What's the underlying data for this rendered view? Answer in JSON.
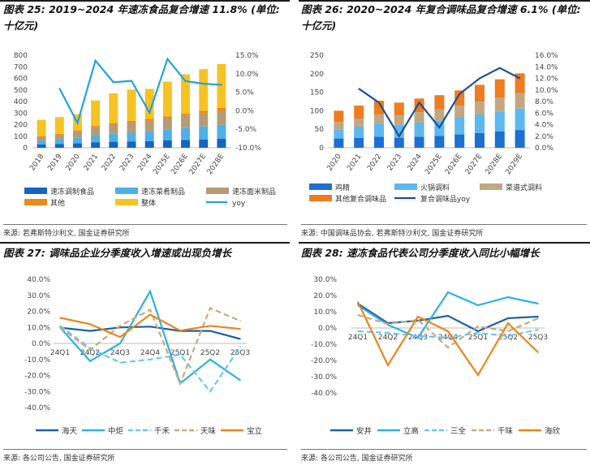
{
  "panels": [
    {
      "title": "图表 25: 2019~2024 年速冻食品复合增速 11.8% (单位: 十亿元)",
      "source": "来源: 若弗斯特沙利文, 国金证券研究所"
    },
    {
      "title": "图表 26: 2020~2024 年复合调味品复合增速 6.1% (单位: 十亿元)",
      "source": "来源: 中国调味品协会, 若弗斯特沙利文, 国金证券研究所"
    },
    {
      "title": "图表 27: 调味品企业分季度收入增速或出现负增长",
      "source": "来源: 各公司公告, 国金证券研究所"
    },
    {
      "title": "图表 28: 速冻食品代表公司分季度收入同比小幅增长",
      "source": "来源: 各公司公告, 国金证券研究所"
    }
  ],
  "chart_data": [
    {
      "type": "bar",
      "stacked": true,
      "categories": [
        "2018",
        "2019",
        "2020",
        "2021",
        "2022",
        "2023",
        "2024",
        "2025E",
        "2026E",
        "2027E",
        "2028E"
      ],
      "series": [
        {
          "name": "速冻调制食品",
          "color": "#1565c0",
          "axis": "left",
          "values": [
            28,
            32,
            38,
            48,
            52,
            55,
            58,
            63,
            68,
            72,
            77
          ]
        },
        {
          "name": "速冻菜肴制品",
          "color": "#4fb0e8",
          "axis": "left",
          "values": [
            32,
            38,
            48,
            60,
            68,
            75,
            82,
            92,
            102,
            112,
            122
          ]
        },
        {
          "name": "速冻面米制品",
          "color": "#b59c76",
          "axis": "left",
          "values": [
            35,
            42,
            55,
            70,
            80,
            88,
            92,
            98,
            105,
            112,
            120
          ]
        },
        {
          "name": "其他",
          "color": "#ec8a1e",
          "axis": "left",
          "values": [
            6,
            7,
            9,
            11,
            13,
            15,
            17,
            19,
            21,
            23,
            25
          ]
        },
        {
          "name": "整体",
          "color": "#f6c324",
          "axis": "left",
          "values": [
            140,
            146,
            140,
            220,
            258,
            270,
            260,
            300,
            340,
            360,
            380
          ]
        },
        {
          "name": "yoy",
          "color": "#1ea3dd",
          "type": "line",
          "axis": "right",
          "values": [
            null,
            6.0,
            -3.3,
            13.5,
            7.7,
            8.1,
            -0.5,
            14.0,
            8.0,
            7.3,
            7.0
          ]
        }
      ],
      "yleft": {
        "min": 0,
        "max": 800,
        "ticks": [
          "0",
          "100",
          "200",
          "300",
          "400",
          "500",
          "600",
          "700",
          "800"
        ]
      },
      "yright": {
        "min": -10,
        "max": 15,
        "ticks": [
          "-10.0%",
          "-5.0%",
          "0.0%",
          "5.0%",
          "10.0%",
          "15.0%"
        ]
      },
      "title": "图表 25: 2019~2024 年速冻食品复合增速 11.8% (单位: 十亿元)"
    },
    {
      "type": "bar",
      "stacked": true,
      "categories": [
        "2020",
        "2021",
        "2022",
        "2023",
        "2024",
        "2025E",
        "2026E",
        "2027E",
        "2028E",
        "2029E"
      ],
      "series": [
        {
          "name": "鸡精",
          "color": "#1f6fd1",
          "axis": "left",
          "values": [
            25,
            27,
            30,
            27,
            30,
            32,
            36,
            40,
            44,
            48
          ]
        },
        {
          "name": "火锅调料",
          "color": "#5cb8ee",
          "axis": "left",
          "values": [
            25,
            30,
            35,
            35,
            38,
            42,
            46,
            50,
            54,
            58
          ]
        },
        {
          "name": "菜谱式调料",
          "color": "#c2a882",
          "axis": "left",
          "values": [
            20,
            22,
            25,
            25,
            28,
            30,
            32,
            35,
            38,
            42
          ]
        },
        {
          "name": "其他复合调味品",
          "color": "#ed7d20",
          "axis": "left",
          "values": [
            30,
            35,
            37,
            35,
            37,
            38,
            41,
            45,
            49,
            53
          ]
        },
        {
          "name": "复合调味品yoy",
          "color": "#1f4e96",
          "type": "line",
          "axis": "right",
          "values": [
            null,
            10.2,
            7.8,
            2.0,
            7.8,
            3.5,
            9.3,
            12.0,
            13.8,
            12.0
          ]
        }
      ],
      "yleft": {
        "min": 0,
        "max": 250,
        "ticks": [
          "0",
          "50",
          "100",
          "150",
          "200",
          "250"
        ]
      },
      "yright": {
        "min": 0,
        "max": 16,
        "ticks": [
          "0.0%",
          "2.0%",
          "4.0%",
          "6.0%",
          "8.0%",
          "10.0%",
          "12.0%",
          "14.0%",
          "16.0%"
        ]
      },
      "title": "图表 26: 2020~2024 年复合调味品复合增速 6.1% (单位: 十亿元)"
    },
    {
      "type": "line",
      "categories": [
        "24Q1",
        "24Q2",
        "24Q3",
        "24Q4",
        "25Q1",
        "25Q2",
        "25Q3"
      ],
      "series": [
        {
          "name": "海天",
          "color": "#1e5fa8",
          "dash": "solid",
          "values": [
            9.8,
            7.8,
            10.0,
            10.5,
            7.8,
            7.8,
            2.8
          ]
        },
        {
          "name": "中炬",
          "color": "#2bb0e6",
          "dash": "solid",
          "values": [
            10.0,
            -11.0,
            0.0,
            32.5,
            -25.0,
            -10.0,
            -23.0
          ]
        },
        {
          "name": "千禾",
          "color": "#6bc7f2",
          "dash": "dash",
          "values": [
            11.0,
            -3.0,
            -12.0,
            -10.0,
            -7.0,
            -30.0,
            -2.0
          ]
        },
        {
          "name": "天味",
          "color": "#c9a97c",
          "dash": "dash",
          "values": [
            10.0,
            -4.0,
            11.0,
            21.0,
            -25.0,
            22.0,
            14.0
          ]
        },
        {
          "name": "宝立",
          "color": "#ec841b",
          "dash": "solid",
          "values": [
            16.0,
            12.0,
            4.0,
            18.0,
            8.0,
            11.0,
            9.0
          ]
        }
      ],
      "yaxis": {
        "min": -40,
        "max": 40,
        "ticks": [
          "-40.0%",
          "-30.0%",
          "-20.0%",
          "-10.0%",
          "0.0%",
          "10.0%",
          "20.0%",
          "30.0%",
          "40.0%"
        ]
      },
      "title": "图表 27: 调味品企业分季度收入增速或出现负增长"
    },
    {
      "type": "line",
      "categories": [
        "24Q1",
        "24Q2",
        "24Q3",
        "24Q4",
        "25Q1",
        "25Q2",
        "25Q3"
      ],
      "series": [
        {
          "name": "安井",
          "color": "#1e5fa8",
          "dash": "solid",
          "values": [
            15.0,
            3.0,
            4.5,
            7.5,
            -2.0,
            6.0,
            7.0
          ]
        },
        {
          "name": "立高",
          "color": "#2bb0e6",
          "dash": "solid",
          "values": [
            14.0,
            2.0,
            -6.0,
            22.0,
            14.0,
            19.0,
            15.0
          ]
        },
        {
          "name": "三全",
          "color": "#6bc7f2",
          "dash": "dash",
          "values": [
            -2.0,
            -3.0,
            -5.0,
            -6.0,
            -3.0,
            -5.0,
            -1.0
          ]
        },
        {
          "name": "千味",
          "color": "#c9a97c",
          "dash": "dash",
          "values": [
            8.0,
            2.5,
            5.0,
            -12.0,
            1.0,
            -2.0,
            6.0
          ]
        },
        {
          "name": "海欣",
          "color": "#ec841b",
          "dash": "solid",
          "values": [
            16.0,
            -23.0,
            7.0,
            -2.0,
            -29.0,
            3.0,
            -15.0
          ]
        }
      ],
      "yaxis": {
        "min": -40,
        "max": 30,
        "ticks": [
          "-40.0%",
          "-30.0%",
          "-20.0%",
          "-10.0%",
          "0.0%",
          "10.0%",
          "20.0%",
          "30.0%"
        ]
      },
      "title": "图表 28: 速冻食品代表公司分季度收入同比小幅增长"
    }
  ]
}
